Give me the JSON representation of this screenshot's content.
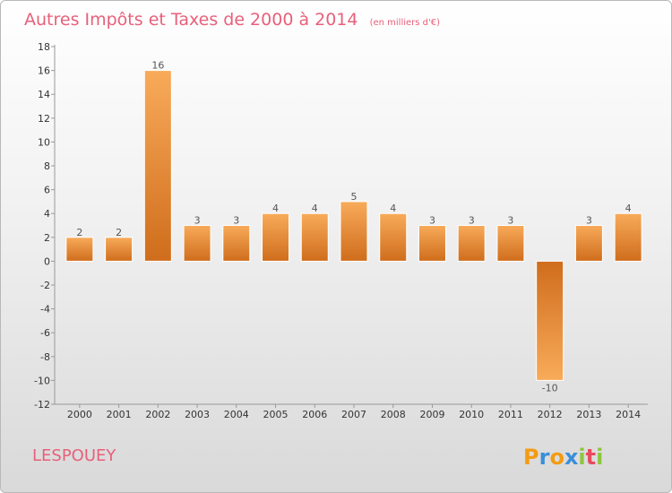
{
  "chart_data": {
    "type": "bar",
    "title": "Autres Impôts et Taxes de 2000 à 2014",
    "unit_note": "(en milliers d'€)",
    "categories": [
      "2000",
      "2001",
      "2002",
      "2003",
      "2004",
      "2005",
      "2006",
      "2007",
      "2008",
      "2009",
      "2010",
      "2011",
      "2012",
      "2013",
      "2014"
    ],
    "values": [
      2,
      2,
      16,
      3,
      3,
      4,
      4,
      5,
      4,
      3,
      3,
      3,
      -10,
      3,
      4
    ],
    "value_labels": [
      "2",
      "2",
      "16",
      "3",
      "3",
      "4",
      "4",
      "5",
      "4",
      "3",
      "3",
      "3",
      "-10",
      "3",
      "4"
    ],
    "ylim": [
      -12,
      18
    ],
    "yticks": [
      18,
      16,
      14,
      12,
      10,
      8,
      6,
      4,
      2,
      0,
      -2,
      -4,
      -6,
      -8,
      -10,
      -12
    ],
    "grid": false,
    "legend": "none",
    "bar_color": "#f0963a"
  },
  "commune": "LESPOUEY",
  "logo": {
    "letters": [
      "P",
      "r",
      "o",
      "x",
      "i",
      "t",
      "i"
    ],
    "colors": [
      "#f39c12",
      "#3a8fd8",
      "#f39c12",
      "#3a8fd8",
      "#8dc63f",
      "#e84a5f",
      "#8dc63f"
    ]
  }
}
